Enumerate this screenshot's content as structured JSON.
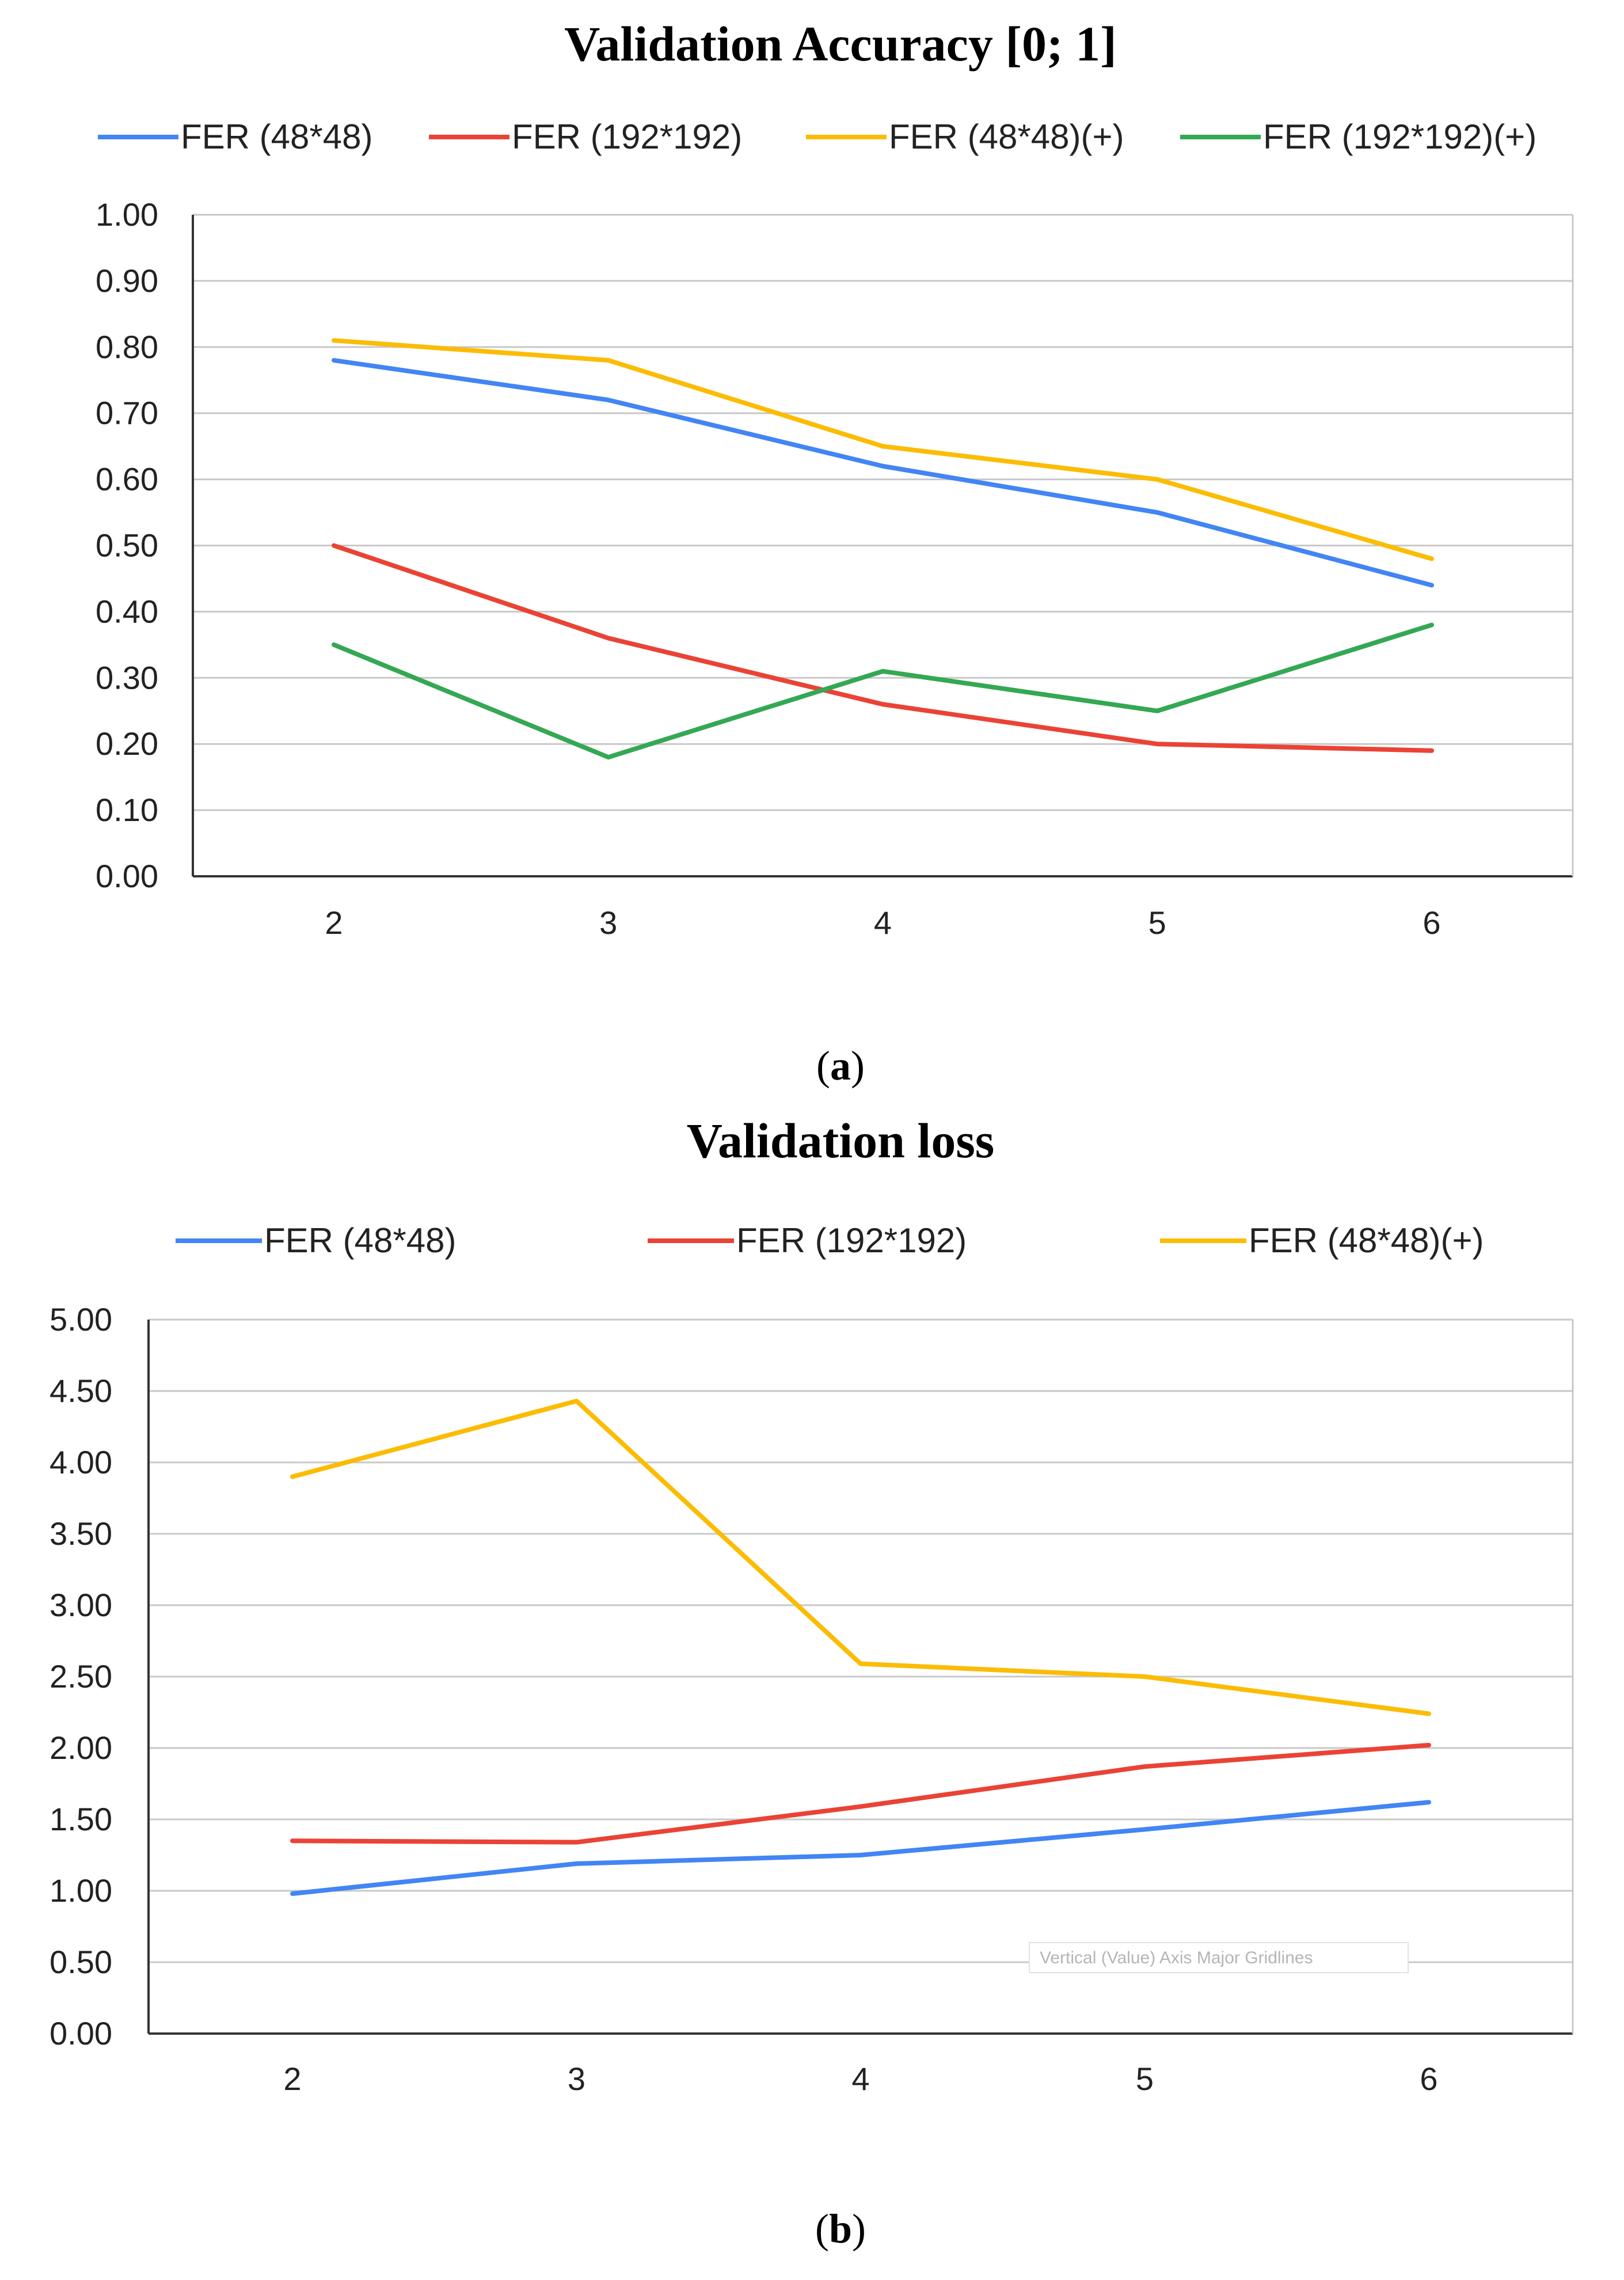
{
  "chart_data": [
    {
      "type": "line",
      "title": "Validation Accuracy [0; 1]",
      "caption": "a",
      "x": [
        2,
        3,
        4,
        5,
        6
      ],
      "ylim": [
        0,
        1
      ],
      "yticks": [
        "0.00",
        "0.10",
        "0.20",
        "0.30",
        "0.40",
        "0.50",
        "0.60",
        "0.70",
        "0.80",
        "0.90",
        "1.00"
      ],
      "grid": true,
      "legend_position": "top",
      "series": [
        {
          "name": "FER (48*48)",
          "color": "#4285f4",
          "values": [
            0.78,
            0.72,
            0.62,
            0.55,
            0.44
          ]
        },
        {
          "name": "FER (192*192)",
          "color": "#ea4335",
          "values": [
            0.5,
            0.36,
            0.26,
            0.2,
            0.19
          ]
        },
        {
          "name": "FER (48*48)(+)",
          "color": "#fbbc04",
          "values": [
            0.81,
            0.78,
            0.65,
            0.6,
            0.48
          ]
        },
        {
          "name": "FER (192*192)(+)",
          "color": "#34a853",
          "values": [
            0.35,
            0.18,
            0.31,
            0.25,
            0.38
          ]
        }
      ]
    },
    {
      "type": "line",
      "title": "Validation loss",
      "caption": "b",
      "x": [
        2,
        3,
        4,
        5,
        6
      ],
      "ylim": [
        0,
        5
      ],
      "yticks": [
        "0.00",
        "0.50",
        "1.00",
        "1.50",
        "2.00",
        "2.50",
        "3.00",
        "3.50",
        "4.00",
        "4.50",
        "5.00"
      ],
      "grid": true,
      "legend_position": "top",
      "tooltip": "Vertical (Value) Axis Major Gridlines",
      "series": [
        {
          "name": "FER (48*48)",
          "color": "#4285f4",
          "values": [
            0.98,
            1.19,
            1.25,
            1.43,
            1.62
          ]
        },
        {
          "name": "FER (192*192)",
          "color": "#ea4335",
          "values": [
            1.35,
            1.34,
            1.59,
            1.87,
            2.02
          ]
        },
        {
          "name": "FER (48*48)(+)",
          "color": "#fbbc04",
          "values": [
            3.9,
            4.43,
            2.59,
            2.5,
            2.24
          ]
        }
      ]
    }
  ]
}
